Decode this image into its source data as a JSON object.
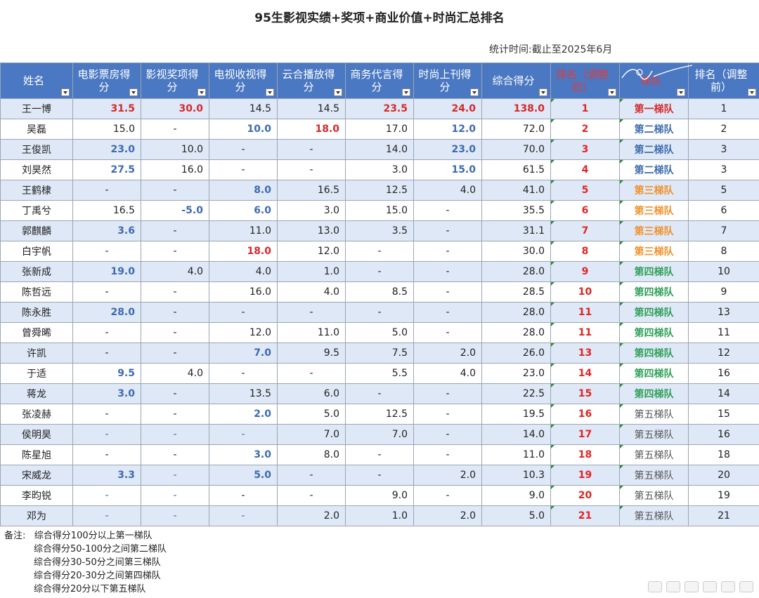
{
  "title": "95生影视实绩+奖项+商业价值+时尚汇总排名",
  "stat_time": "统计时间:截止至2025年6月",
  "headers": [
    "姓名",
    "电影票房得分",
    "影视奖项得分",
    "电视收视得分",
    "云合播放得分",
    "商务代言得分",
    "时尚上刊得分",
    "综合得分",
    "排名（调整后）",
    "梯队",
    "排名（调整前）"
  ],
  "rows": [
    [
      "王一博",
      "31.5",
      "30.0",
      "14.5",
      "14.5",
      "23.5",
      "24.0",
      "138.0",
      "1",
      "第一梯队",
      "1"
    ],
    [
      "吴磊",
      "15.0",
      "-",
      "10.0",
      "18.0",
      "17.0",
      "12.0",
      "72.0",
      "2",
      "第二梯队",
      "2"
    ],
    [
      "王俊凯",
      "23.0",
      "10.0",
      "-",
      "-",
      "14.0",
      "23.0",
      "70.0",
      "3",
      "第二梯队",
      "3"
    ],
    [
      "刘昊然",
      "27.5",
      "16.0",
      "-",
      "-",
      "3.0",
      "15.0",
      "61.5",
      "4",
      "第二梯队",
      "3"
    ],
    [
      "王鹤棣",
      "-",
      "-",
      "8.0",
      "16.5",
      "12.5",
      "4.0",
      "41.0",
      "5",
      "第三梯队",
      "5"
    ],
    [
      "丁禹兮",
      "16.5",
      "-5.0",
      "6.0",
      "3.0",
      "15.0",
      "-",
      "35.5",
      "6",
      "第三梯队",
      "6"
    ],
    [
      "郭麒麟",
      "3.6",
      "-",
      "11.0",
      "13.0",
      "3.5",
      "-",
      "31.1",
      "7",
      "第三梯队",
      "7"
    ],
    [
      "白宇帆",
      "-",
      "-",
      "18.0",
      "12.0",
      "-",
      "-",
      "30.0",
      "8",
      "第三梯队",
      "8"
    ],
    [
      "张新成",
      "19.0",
      "4.0",
      "4.0",
      "1.0",
      "-",
      "-",
      "28.0",
      "9",
      "第四梯队",
      "10"
    ],
    [
      "陈哲远",
      "-",
      "-",
      "16.0",
      "4.0",
      "8.5",
      "-",
      "28.5",
      "10",
      "第四梯队",
      "9"
    ],
    [
      "陈永胜",
      "28.0",
      "-",
      "-",
      "-",
      "-",
      "-",
      "28.0",
      "11",
      "第四梯队",
      "13"
    ],
    [
      "曾舜晞",
      "-",
      "-",
      "12.0",
      "11.0",
      "5.0",
      "-",
      "28.0",
      "11",
      "第四梯队",
      "11"
    ],
    [
      "许凯",
      "-",
      "-",
      "7.0",
      "9.5",
      "7.5",
      "2.0",
      "26.0",
      "13",
      "第四梯队",
      "12"
    ],
    [
      "于适",
      "9.5",
      "4.0",
      "-",
      "-",
      "5.5",
      "4.0",
      "23.0",
      "14",
      "第四梯队",
      "16"
    ],
    [
      "蒋龙",
      "3.0",
      "-",
      "13.5",
      "6.0",
      "-",
      "-",
      "22.5",
      "15",
      "第四梯队",
      "14"
    ],
    [
      "张凌赫",
      "-",
      "-",
      "2.0",
      "5.0",
      "12.5",
      "-",
      "19.5",
      "16",
      "第五梯队",
      "15"
    ],
    [
      "侯明昊",
      "-",
      "-",
      "-",
      "7.0",
      "7.0",
      "-",
      "14.0",
      "17",
      "第五梯队",
      "16"
    ],
    [
      "陈星旭",
      "-",
      "-",
      "3.0",
      "8.0",
      "-",
      "-",
      "11.0",
      "18",
      "第五梯队",
      "18"
    ],
    [
      "宋威龙",
      "3.3",
      "-",
      "5.0",
      "-",
      "-",
      "2.0",
      "10.3",
      "19",
      "第五梯队",
      "20"
    ],
    [
      "李昀锐",
      "-",
      "-",
      "-",
      "-",
      "9.0",
      "-",
      "9.0",
      "20",
      "第五梯队",
      "19"
    ],
    [
      "邓为",
      "-",
      "-",
      "-",
      "2.0",
      "1.0",
      "2.0",
      "5.0",
      "21",
      "第五梯队",
      "21"
    ]
  ],
  "notes": {
    "label": "备注:",
    "lines": [
      "综合得分100分以上第一梯队",
      "综合得分50-100分之间第二梯队",
      "综合得分30-50分之间第三梯队",
      "综合得分20-30分之间第四梯队",
      "综合得分20分以下第五梯队"
    ]
  },
  "colors": {
    "header_bg": "#4a78c2",
    "stripe": "#dfe8f6",
    "red": "#d42a2a",
    "blue": "#3d6bb0",
    "orange": "#f0902a",
    "green": "#2ea058"
  }
}
